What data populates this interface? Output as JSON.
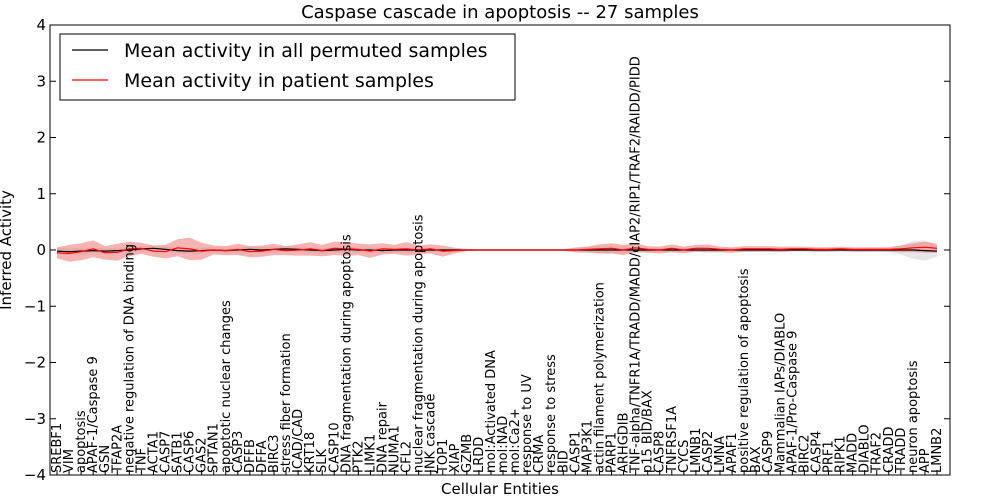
{
  "chart_data": {
    "type": "line",
    "title": "Caspase cascade in apoptosis -- 27 samples",
    "xlabel": "Cellular Entities",
    "ylabel": "Inferred Activity",
    "ylim": [
      -4,
      4
    ],
    "yticks": [
      -4,
      -3,
      -2,
      -1,
      0,
      1,
      2,
      3,
      4
    ],
    "ytick_labels": [
      "−4",
      "−3",
      "−2",
      "−1",
      "0",
      "1",
      "2",
      "3",
      "4"
    ],
    "legend_position": "top-left",
    "categories": [
      "SREBF1",
      "VIM",
      "apoptosis",
      "APAF-1/Caspase 9",
      "GSN",
      "TFAP2A",
      "negative regulation of DNA binding",
      "TNF",
      "ACTA1",
      "CASP7",
      "SATB1",
      "CASP6",
      "GAS2",
      "SPTAN1",
      "apoptotic nuclear changes",
      "CASP3",
      "DFFB",
      "DFFA",
      "BIRC3",
      "stress fiber formation",
      "ICAD/CAD",
      "KRT18",
      "SLK",
      "CASP10",
      "DNA fragmentation during apoptosis",
      "PTK2",
      "LIMK1",
      "DNA repair",
      "NUMA1",
      "CFL2",
      "nuclear fragmentation during apoptosis",
      "JNK cascade",
      "TOP1",
      "XIAP",
      "GZMB",
      "LRDD",
      "mol:Activated DNA",
      "mol:NAD",
      "mol:Ca2+",
      "response to UV",
      "CRMA",
      "response to stress",
      "BID",
      "CASP1",
      "MAP3K1",
      "actin filament polymerization",
      "PARP1",
      "ARHGDIB",
      "TNF-alpha/TNFR1A/TRADD/MADD/cIAP2/RIP1/TRAF2/RAIDD/PIDD",
      "p15 BID/BAX",
      "CASP8",
      "TNFRSF1A",
      "CYCS",
      "LMNB1",
      "CASP2",
      "LMNA",
      "APAF1",
      "positive regulation of apoptosis",
      "BAX",
      "CASP9",
      "Mammalian IAPs/DIABLO",
      "APAF-1/Pro-Caspase 9",
      "BIRC2",
      "CASP4",
      "PRF1",
      "RIPK1",
      "MADD",
      "DIABLO",
      "TRAF2",
      "CRADD",
      "TRADD",
      "neuron apoptosis",
      "APP",
      "LMNB2"
    ],
    "series": [
      {
        "name": "Mean activity in all permuted samples",
        "color": "#000000",
        "band_color": "#bbbbbb",
        "values": [
          -0.02,
          -0.03,
          -0.02,
          -0.01,
          -0.02,
          -0.01,
          0.0,
          0.02,
          0.03,
          0.01,
          -0.01,
          -0.02,
          -0.01,
          0.0,
          -0.01,
          0.0,
          0.01,
          0.0,
          0.01,
          0.02,
          0.01,
          0.0,
          -0.01,
          0.0,
          0.01,
          0.0,
          0.0,
          -0.01,
          0.0,
          0.0,
          0.0,
          0.0,
          0.0,
          0.0,
          0.0,
          0.0,
          0.0,
          0.0,
          0.0,
          0.0,
          0.0,
          0.0,
          0.0,
          0.0,
          0.0,
          0.0,
          0.0,
          0.0,
          0.0,
          0.0,
          0.0,
          0.0,
          0.0,
          0.0,
          0.0,
          0.0,
          0.0,
          0.0,
          0.0,
          0.0,
          0.0,
          0.0,
          0.0,
          0.0,
          0.0,
          0.0,
          0.0,
          0.0,
          0.0,
          0.0,
          0.0,
          0.0,
          -0.01,
          -0.02
        ],
        "std": [
          0.06,
          0.06,
          0.06,
          0.05,
          0.05,
          0.05,
          0.05,
          0.05,
          0.05,
          0.05,
          0.05,
          0.05,
          0.05,
          0.05,
          0.05,
          0.05,
          0.05,
          0.05,
          0.05,
          0.05,
          0.05,
          0.05,
          0.05,
          0.05,
          0.05,
          0.05,
          0.05,
          0.05,
          0.05,
          0.05,
          0.05,
          0.05,
          0.03,
          0.02,
          0.01,
          0.01,
          0.01,
          0.01,
          0.01,
          0.01,
          0.01,
          0.01,
          0.02,
          0.05,
          0.06,
          0.07,
          0.07,
          0.06,
          0.05,
          0.04,
          0.04,
          0.04,
          0.04,
          0.04,
          0.04,
          0.04,
          0.04,
          0.04,
          0.03,
          0.03,
          0.03,
          0.03,
          0.03,
          0.03,
          0.03,
          0.03,
          0.03,
          0.03,
          0.03,
          0.04,
          0.08,
          0.16,
          0.18,
          0.1
        ]
      },
      {
        "name": "Mean activity in patient samples",
        "color": "#ff0000",
        "band_color": "#f08080",
        "values": [
          -0.05,
          -0.06,
          -0.03,
          0.02,
          -0.05,
          -0.04,
          0.02,
          0.03,
          -0.02,
          -0.03,
          0.04,
          0.02,
          -0.02,
          0.0,
          -0.01,
          0.01,
          -0.03,
          -0.02,
          0.01,
          -0.01,
          0.0,
          0.02,
          -0.01,
          0.03,
          0.02,
          0.01,
          -0.02,
          0.02,
          0.01,
          0.02,
          0.0,
          0.02,
          -0.02,
          -0.01,
          0.0,
          0.0,
          0.0,
          0.0,
          0.0,
          0.0,
          0.0,
          0.0,
          0.0,
          0.0,
          0.01,
          0.02,
          0.03,
          0.0,
          0.04,
          0.01,
          0.0,
          0.03,
          0.0,
          0.03,
          0.03,
          0.01,
          0.0,
          0.02,
          0.02,
          0.02,
          0.01,
          0.02,
          0.02,
          0.01,
          0.01,
          0.02,
          0.01,
          0.01,
          0.01,
          0.01,
          0.02,
          0.04,
          0.05,
          0.03
        ],
        "std": [
          0.1,
          0.15,
          0.15,
          0.15,
          0.12,
          0.15,
          0.13,
          0.1,
          0.1,
          0.12,
          0.15,
          0.2,
          0.15,
          0.08,
          0.08,
          0.1,
          0.1,
          0.1,
          0.1,
          0.08,
          0.1,
          0.12,
          0.1,
          0.12,
          0.12,
          0.1,
          0.12,
          0.1,
          0.08,
          0.12,
          0.08,
          0.08,
          0.1,
          0.05,
          0.02,
          0.01,
          0.01,
          0.01,
          0.01,
          0.01,
          0.01,
          0.01,
          0.01,
          0.04,
          0.05,
          0.08,
          0.09,
          0.09,
          0.08,
          0.06,
          0.06,
          0.07,
          0.06,
          0.06,
          0.07,
          0.05,
          0.05,
          0.05,
          0.05,
          0.05,
          0.05,
          0.04,
          0.04,
          0.04,
          0.04,
          0.04,
          0.04,
          0.04,
          0.04,
          0.04,
          0.06,
          0.08,
          0.1,
          0.08
        ]
      }
    ]
  }
}
